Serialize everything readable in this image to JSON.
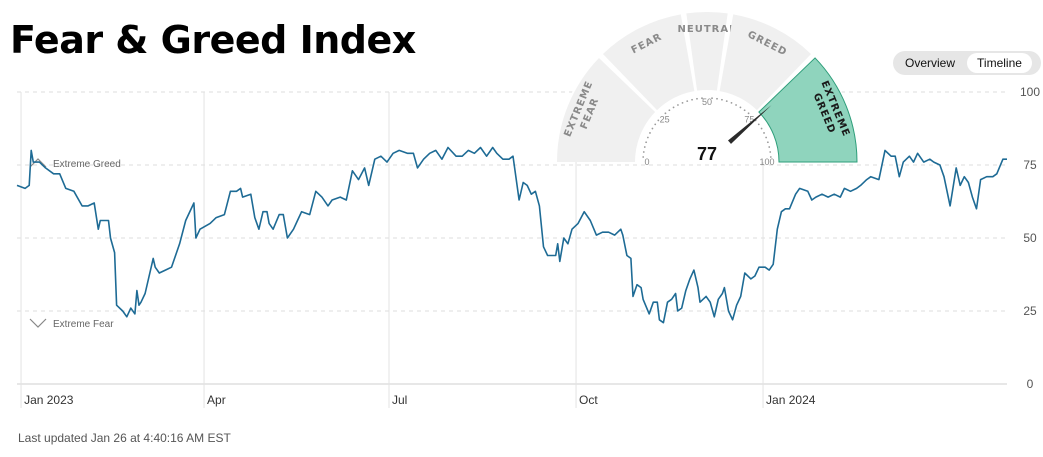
{
  "header": {
    "title": "Fear & Greed Index"
  },
  "view_toggle": {
    "overview_label": "Overview",
    "timeline_label": "Timeline",
    "active": "Timeline"
  },
  "footer": {
    "last_updated": "Last updated Jan 26 at 4:40:16 AM EST"
  },
  "colors": {
    "line": "#1e6b95",
    "grid": "#e3e3e3",
    "gauge_active": "#8fd4bd",
    "gauge_inactive": "#f0f0f0"
  },
  "gauge": {
    "value": 77,
    "zones": [
      "EXTREME FEAR",
      "FEAR",
      "NEUTRAL",
      "GREED",
      "EXTREME GREED"
    ],
    "active_zone": "EXTREME GREED",
    "ticks": [
      "0",
      "25",
      "50",
      "75",
      "100"
    ]
  },
  "chart_data": {
    "type": "line",
    "title": "",
    "xlabel": "",
    "ylabel": "",
    "ylim": [
      0,
      100
    ],
    "y_ticks": [
      0,
      25,
      50,
      75,
      100
    ],
    "grid": true,
    "x_ticks": [
      {
        "label": "Jan 2023",
        "date": "2023-01-01"
      },
      {
        "label": "Apr",
        "date": "2023-04-01"
      },
      {
        "label": "Jul",
        "date": "2023-07-01"
      },
      {
        "label": "Oct",
        "date": "2023-10-01"
      },
      {
        "label": "Jan 2024",
        "date": "2024-01-01"
      }
    ],
    "annotations": [
      {
        "label": "Extreme Greed",
        "y": 75
      },
      {
        "label": "Extreme Fear",
        "y": 25
      }
    ],
    "series": [
      {
        "points": [
          [
            "2022-12-30",
            68
          ],
          [
            "2023-01-03",
            67
          ],
          [
            "2023-01-05",
            68
          ],
          [
            "2023-01-06",
            80
          ],
          [
            "2023-01-07",
            76
          ],
          [
            "2023-01-10",
            76
          ],
          [
            "2023-01-13",
            74
          ],
          [
            "2023-01-17",
            72
          ],
          [
            "2023-01-20",
            72
          ],
          [
            "2023-01-23",
            67
          ],
          [
            "2023-01-27",
            66
          ],
          [
            "2023-01-31",
            61
          ],
          [
            "2023-02-03",
            61
          ],
          [
            "2023-02-06",
            62
          ],
          [
            "2023-02-08",
            53
          ],
          [
            "2023-02-09",
            56
          ],
          [
            "2023-02-13",
            56
          ],
          [
            "2023-02-14",
            50
          ],
          [
            "2023-02-16",
            45
          ],
          [
            "2023-02-17",
            27
          ],
          [
            "2023-02-20",
            25
          ],
          [
            "2023-02-22",
            23
          ],
          [
            "2023-02-24",
            26
          ],
          [
            "2023-02-26",
            24
          ],
          [
            "2023-02-27",
            32
          ],
          [
            "2023-02-28",
            27
          ],
          [
            "2023-03-01",
            28
          ],
          [
            "2023-03-03",
            31
          ],
          [
            "2023-03-07",
            43
          ],
          [
            "2023-03-08",
            40
          ],
          [
            "2023-03-10",
            38
          ],
          [
            "2023-03-13",
            39
          ],
          [
            "2023-03-16",
            40
          ],
          [
            "2023-03-20",
            48
          ],
          [
            "2023-03-23",
            56
          ],
          [
            "2023-03-27",
            62
          ],
          [
            "2023-03-28",
            50
          ],
          [
            "2023-03-30",
            53
          ],
          [
            "2023-04-04",
            55
          ],
          [
            "2023-04-07",
            57
          ],
          [
            "2023-04-11",
            58
          ],
          [
            "2023-04-14",
            66
          ],
          [
            "2023-04-17",
            66
          ],
          [
            "2023-04-19",
            67
          ],
          [
            "2023-04-20",
            64
          ],
          [
            "2023-04-24",
            65
          ],
          [
            "2023-04-26",
            57
          ],
          [
            "2023-04-28",
            53
          ],
          [
            "2023-04-30",
            59
          ],
          [
            "2023-05-02",
            59
          ],
          [
            "2023-05-03",
            55
          ],
          [
            "2023-05-05",
            53
          ],
          [
            "2023-05-08",
            58
          ],
          [
            "2023-05-10",
            58
          ],
          [
            "2023-05-12",
            50
          ],
          [
            "2023-05-15",
            53
          ],
          [
            "2023-05-17",
            56
          ],
          [
            "2023-05-19",
            59
          ],
          [
            "2023-05-23",
            58
          ],
          [
            "2023-05-26",
            66
          ],
          [
            "2023-05-29",
            64
          ],
          [
            "2023-06-01",
            61
          ],
          [
            "2023-06-03",
            63
          ],
          [
            "2023-06-07",
            64
          ],
          [
            "2023-06-10",
            63
          ],
          [
            "2023-06-13",
            73
          ],
          [
            "2023-06-16",
            70
          ],
          [
            "2023-06-19",
            74
          ],
          [
            "2023-06-21",
            68
          ],
          [
            "2023-06-24",
            77
          ],
          [
            "2023-06-27",
            78
          ],
          [
            "2023-06-30",
            76
          ],
          [
            "2023-07-03",
            79
          ],
          [
            "2023-07-06",
            80
          ],
          [
            "2023-07-10",
            79
          ],
          [
            "2023-07-13",
            79
          ],
          [
            "2023-07-15",
            74
          ],
          [
            "2023-07-18",
            77
          ],
          [
            "2023-07-21",
            79
          ],
          [
            "2023-07-24",
            80
          ],
          [
            "2023-07-27",
            77
          ],
          [
            "2023-07-30",
            81
          ],
          [
            "2023-08-03",
            78
          ],
          [
            "2023-08-06",
            78
          ],
          [
            "2023-08-09",
            80
          ],
          [
            "2023-08-12",
            79
          ],
          [
            "2023-08-15",
            81
          ],
          [
            "2023-08-18",
            78
          ],
          [
            "2023-08-21",
            81
          ],
          [
            "2023-08-23",
            79
          ],
          [
            "2023-08-26",
            77
          ],
          [
            "2023-08-29",
            77
          ],
          [
            "2023-08-31",
            78
          ],
          [
            "2023-09-03",
            63
          ],
          [
            "2023-09-05",
            69
          ],
          [
            "2023-09-07",
            68
          ],
          [
            "2023-09-09",
            65
          ],
          [
            "2023-09-11",
            66
          ],
          [
            "2023-09-13",
            61
          ],
          [
            "2023-09-15",
            47
          ],
          [
            "2023-09-17",
            44
          ],
          [
            "2023-09-21",
            44
          ],
          [
            "2023-09-22",
            48
          ],
          [
            "2023-09-23",
            42
          ],
          [
            "2023-09-25",
            50
          ],
          [
            "2023-09-27",
            48
          ],
          [
            "2023-09-29",
            53
          ],
          [
            "2023-10-02",
            55
          ],
          [
            "2023-10-05",
            59
          ],
          [
            "2023-10-08",
            56
          ],
          [
            "2023-10-11",
            51
          ],
          [
            "2023-10-14",
            52
          ],
          [
            "2023-10-17",
            52
          ],
          [
            "2023-10-20",
            51
          ],
          [
            "2023-10-23",
            53
          ],
          [
            "2023-10-24",
            51
          ],
          [
            "2023-10-26",
            44
          ],
          [
            "2023-10-28",
            43
          ],
          [
            "2023-10-29",
            30
          ],
          [
            "2023-10-31",
            34
          ],
          [
            "2023-11-02",
            33
          ],
          [
            "2023-11-03",
            29
          ],
          [
            "2023-11-06",
            24
          ],
          [
            "2023-11-08",
            28
          ],
          [
            "2023-11-10",
            28
          ],
          [
            "2023-11-11",
            22
          ],
          [
            "2023-11-13",
            21
          ],
          [
            "2023-11-15",
            28
          ],
          [
            "2023-11-17",
            29
          ],
          [
            "2023-11-19",
            31
          ],
          [
            "2023-11-20",
            25
          ],
          [
            "2023-11-22",
            26
          ],
          [
            "2023-11-24",
            32
          ],
          [
            "2023-11-26",
            36
          ],
          [
            "2023-11-28",
            39
          ],
          [
            "2023-11-30",
            33
          ],
          [
            "2023-12-01",
            28
          ],
          [
            "2023-12-04",
            30
          ],
          [
            "2023-12-06",
            28
          ],
          [
            "2023-12-08",
            23
          ],
          [
            "2023-12-10",
            29
          ],
          [
            "2023-12-12",
            31
          ],
          [
            "2023-12-13",
            33
          ],
          [
            "2023-12-15",
            25
          ],
          [
            "2023-12-17",
            22
          ],
          [
            "2023-12-19",
            27
          ],
          [
            "2023-12-21",
            30
          ],
          [
            "2023-12-23",
            38
          ],
          [
            "2023-12-26",
            36
          ],
          [
            "2023-12-28",
            37
          ],
          [
            "2023-12-30",
            40
          ],
          [
            "2024-01-02",
            40
          ],
          [
            "2024-01-04",
            39
          ],
          [
            "2024-01-06",
            41
          ],
          [
            "2024-01-08",
            53
          ],
          [
            "2024-01-10",
            59
          ],
          [
            "2024-01-12",
            60
          ],
          [
            "2024-01-14",
            60
          ],
          [
            "2024-01-17",
            65
          ],
          [
            "2024-01-19",
            67
          ],
          [
            "2024-01-23",
            66
          ],
          [
            "2024-01-25",
            63
          ],
          [
            "2024-01-27",
            64
          ],
          [
            "2024-01-30",
            65
          ],
          [
            "2024-02-02",
            64
          ],
          [
            "2024-02-05",
            65
          ],
          [
            "2024-02-08",
            64
          ],
          [
            "2024-02-10",
            67
          ],
          [
            "2024-02-13",
            66
          ],
          [
            "2024-02-16",
            67
          ],
          [
            "2024-02-18",
            68
          ],
          [
            "2024-02-21",
            70
          ],
          [
            "2024-02-23",
            71
          ],
          [
            "2024-02-27",
            70
          ],
          [
            "2024-03-01",
            80
          ],
          [
            "2024-03-04",
            78
          ],
          [
            "2024-03-06",
            78
          ],
          [
            "2024-03-08",
            71
          ],
          [
            "2024-03-10",
            76
          ],
          [
            "2024-03-13",
            78
          ],
          [
            "2024-03-15",
            76
          ],
          [
            "2024-03-17",
            79
          ],
          [
            "2024-03-20",
            76
          ],
          [
            "2024-03-23",
            77
          ],
          [
            "2024-03-25",
            76
          ],
          [
            "2024-03-28",
            75
          ],
          [
            "2024-03-30",
            71
          ],
          [
            "2024-04-02",
            61
          ],
          [
            "2024-04-05",
            74
          ],
          [
            "2024-04-07",
            68
          ],
          [
            "2024-04-09",
            71
          ],
          [
            "2024-04-11",
            69
          ],
          [
            "2024-04-13",
            64
          ],
          [
            "2024-04-15",
            60
          ],
          [
            "2024-04-17",
            70
          ],
          [
            "2024-04-20",
            71
          ],
          [
            "2024-04-23",
            71
          ],
          [
            "2024-04-25",
            72
          ],
          [
            "2024-04-28",
            77
          ],
          [
            "2024-04-30",
            77
          ]
        ]
      }
    ]
  }
}
